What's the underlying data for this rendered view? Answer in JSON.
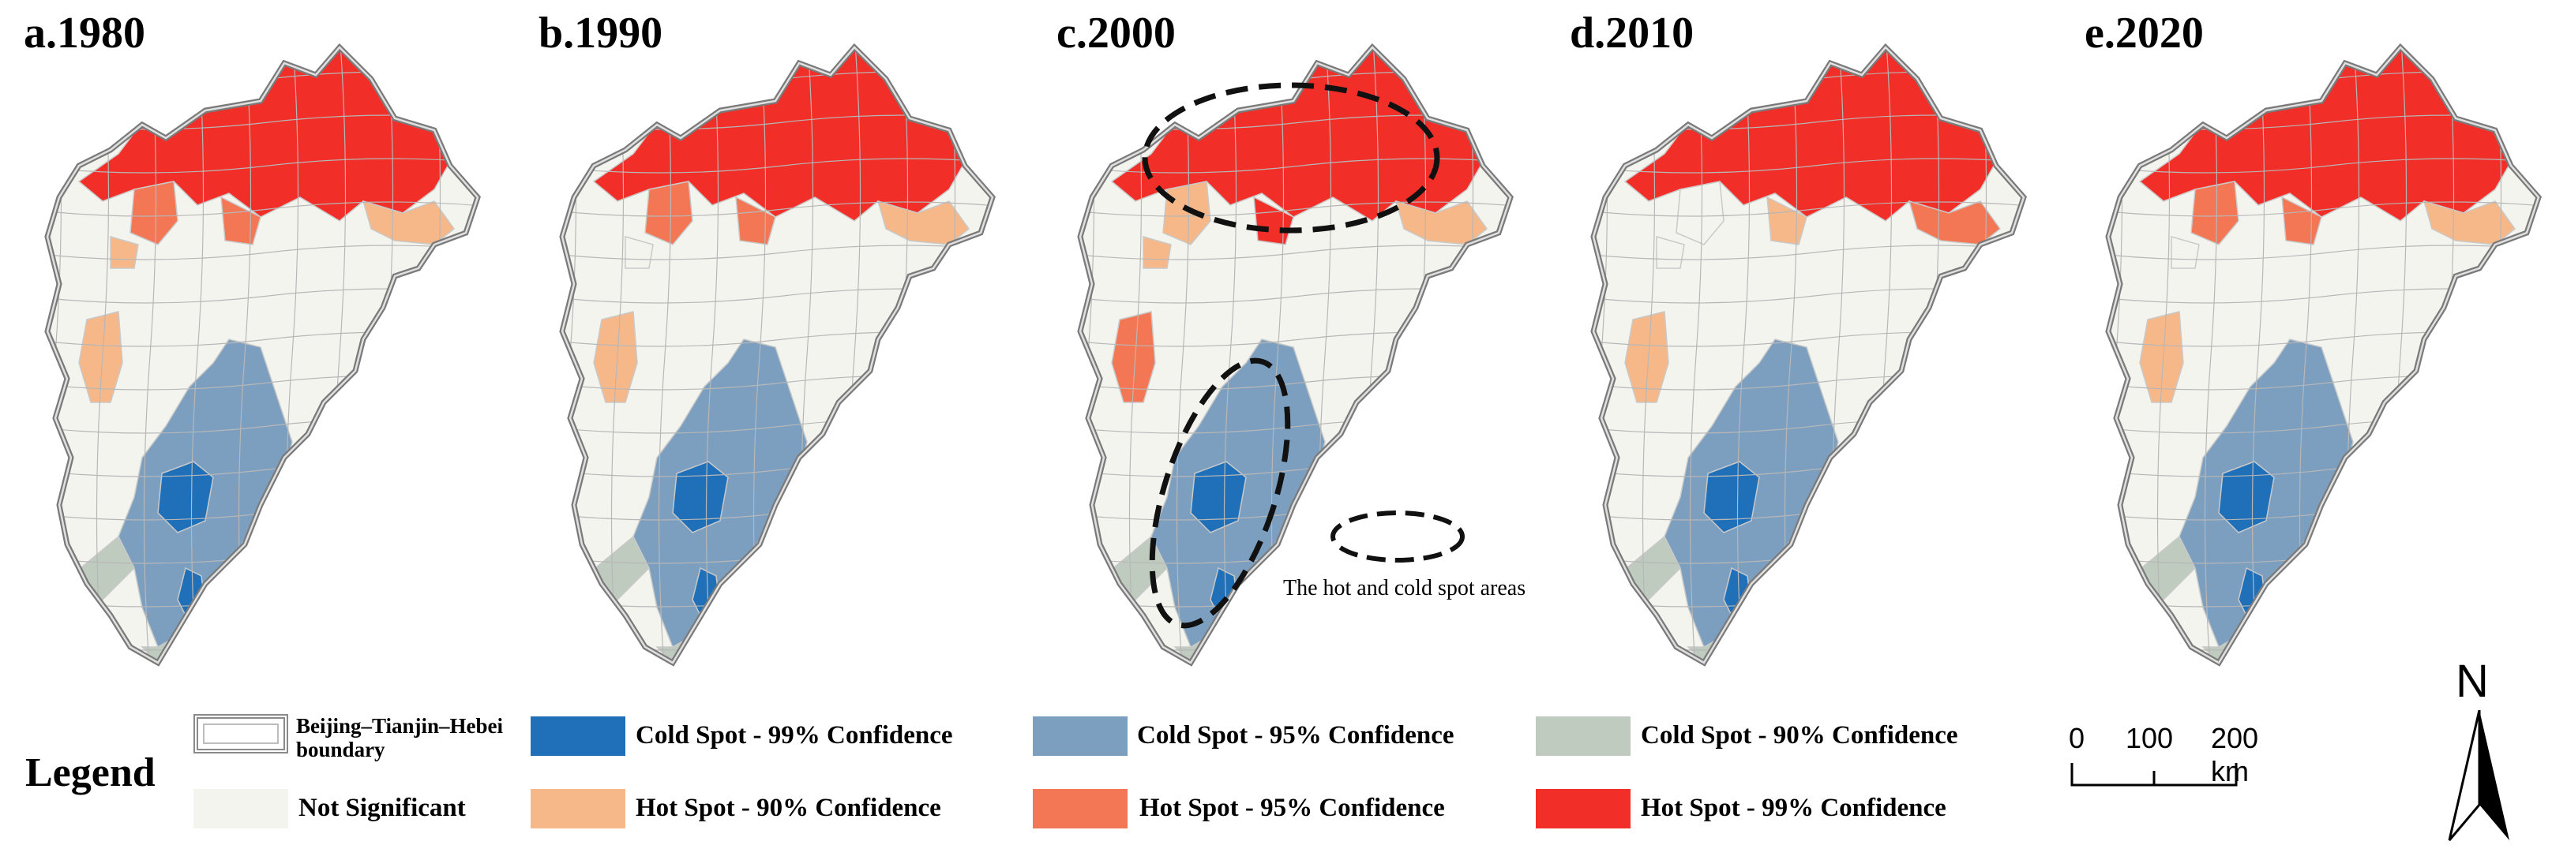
{
  "panels": [
    {
      "label": "a.1980"
    },
    {
      "label": "b.1990"
    },
    {
      "label": "c.2000"
    },
    {
      "label": "d.2010"
    },
    {
      "label": "e.2020"
    }
  ],
  "annotation": "The hot and cold spot areas",
  "legend": {
    "title": "Legend",
    "boundary_label_line1": "Beijing–Tianjin–Hebei",
    "boundary_label_line2": "boundary",
    "items": [
      {
        "label": "Cold Spot - 99% Confidence",
        "color": "#1f70b8"
      },
      {
        "label": "Cold Spot - 95% Confidence",
        "color": "#7c9fc0"
      },
      {
        "label": "Cold Spot - 90% Confidence",
        "color": "#bfcbbf"
      },
      {
        "label": "Not Significant",
        "color": "#f4f4ef"
      },
      {
        "label": "Hot Spot - 90% Confidence",
        "color": "#f6b888"
      },
      {
        "label": "Hot Spot - 95% Confidence",
        "color": "#f47755"
      },
      {
        "label": "Hot Spot - 99% Confidence",
        "color": "#f22e28"
      }
    ]
  },
  "scale_bar": {
    "ticks": [
      "0",
      "100",
      "200 km"
    ]
  },
  "north_arrow": {
    "label": "N"
  }
}
